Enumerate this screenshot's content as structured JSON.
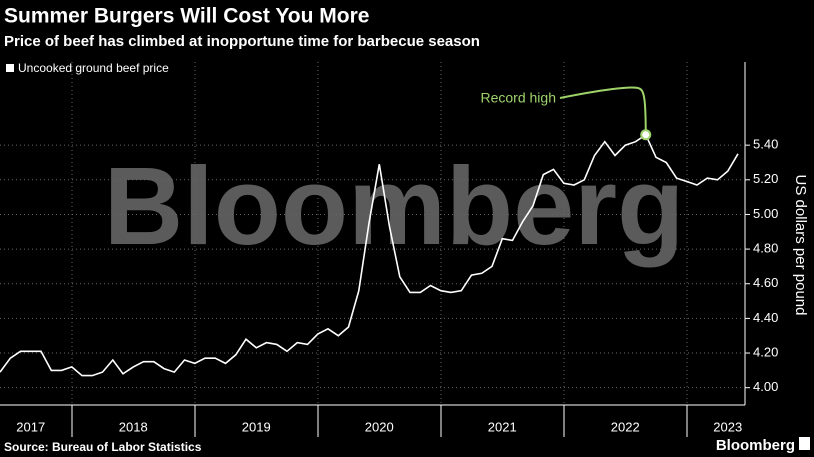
{
  "chart_data": {
    "type": "line",
    "title": "Summer Burgers Will Cost You More",
    "subtitle": "Price of beef has climbed at inopportune time for barbecue season",
    "ylabel": "US dollars per pound",
    "source": "Source: Bureau of Labor Statistics",
    "watermark": "Bloomberg",
    "logo": "Bloomberg",
    "annotation": "Record high",
    "annotation_color": "#9ed36a",
    "grid": true,
    "categories": [
      null,
      null,
      null,
      "2017",
      null,
      null,
      null,
      null,
      null,
      null,
      null,
      null,
      null,
      "2018",
      null,
      null,
      null,
      null,
      null,
      null,
      null,
      null,
      null,
      null,
      null,
      "2019",
      null,
      null,
      null,
      null,
      null,
      null,
      null,
      null,
      null,
      null,
      null,
      "2020",
      null,
      null,
      null,
      null,
      null,
      null,
      null,
      null,
      null,
      null,
      null,
      "2021",
      null,
      null,
      null,
      null,
      null,
      null,
      null,
      null,
      null,
      null,
      null,
      "2022",
      null,
      null,
      null,
      null,
      null,
      null,
      null,
      null,
      null,
      "2023",
      null
    ],
    "series": [
      {
        "name": "Uncooked ground beef price",
        "color": "#ffffff",
        "values": [
          4.09,
          4.17,
          4.21,
          4.21,
          4.21,
          4.1,
          4.1,
          4.12,
          4.07,
          4.07,
          4.09,
          4.16,
          4.08,
          4.12,
          4.15,
          4.15,
          4.11,
          4.09,
          4.16,
          4.14,
          4.17,
          4.17,
          4.14,
          4.19,
          4.28,
          4.23,
          4.26,
          4.25,
          4.21,
          4.26,
          4.25,
          4.31,
          4.34,
          4.3,
          4.35,
          4.56,
          4.95,
          5.29,
          4.93,
          4.64,
          4.55,
          4.55,
          4.59,
          4.56,
          4.55,
          4.56,
          4.65,
          4.66,
          4.7,
          4.86,
          4.85,
          4.96,
          5.05,
          5.23,
          5.26,
          5.18,
          5.17,
          5.2,
          5.34,
          5.42,
          5.34,
          5.4,
          5.42,
          5.46,
          5.33,
          5.3,
          5.21,
          5.19,
          5.17,
          5.21,
          5.2,
          5.25,
          5.35
        ]
      }
    ],
    "ylim": [
      3.9,
      5.88
    ],
    "yticks": [
      {
        "value": 4.0,
        "label": "4.00"
      },
      {
        "value": 4.2,
        "label": "4.20"
      },
      {
        "value": 4.4,
        "label": "4.40"
      },
      {
        "value": 4.6,
        "label": "4.60"
      },
      {
        "value": 4.8,
        "label": "4.80"
      },
      {
        "value": 5.0,
        "label": "5.00"
      },
      {
        "value": 5.2,
        "label": "5.20"
      },
      {
        "value": 5.4,
        "label": "5.40"
      }
    ]
  }
}
